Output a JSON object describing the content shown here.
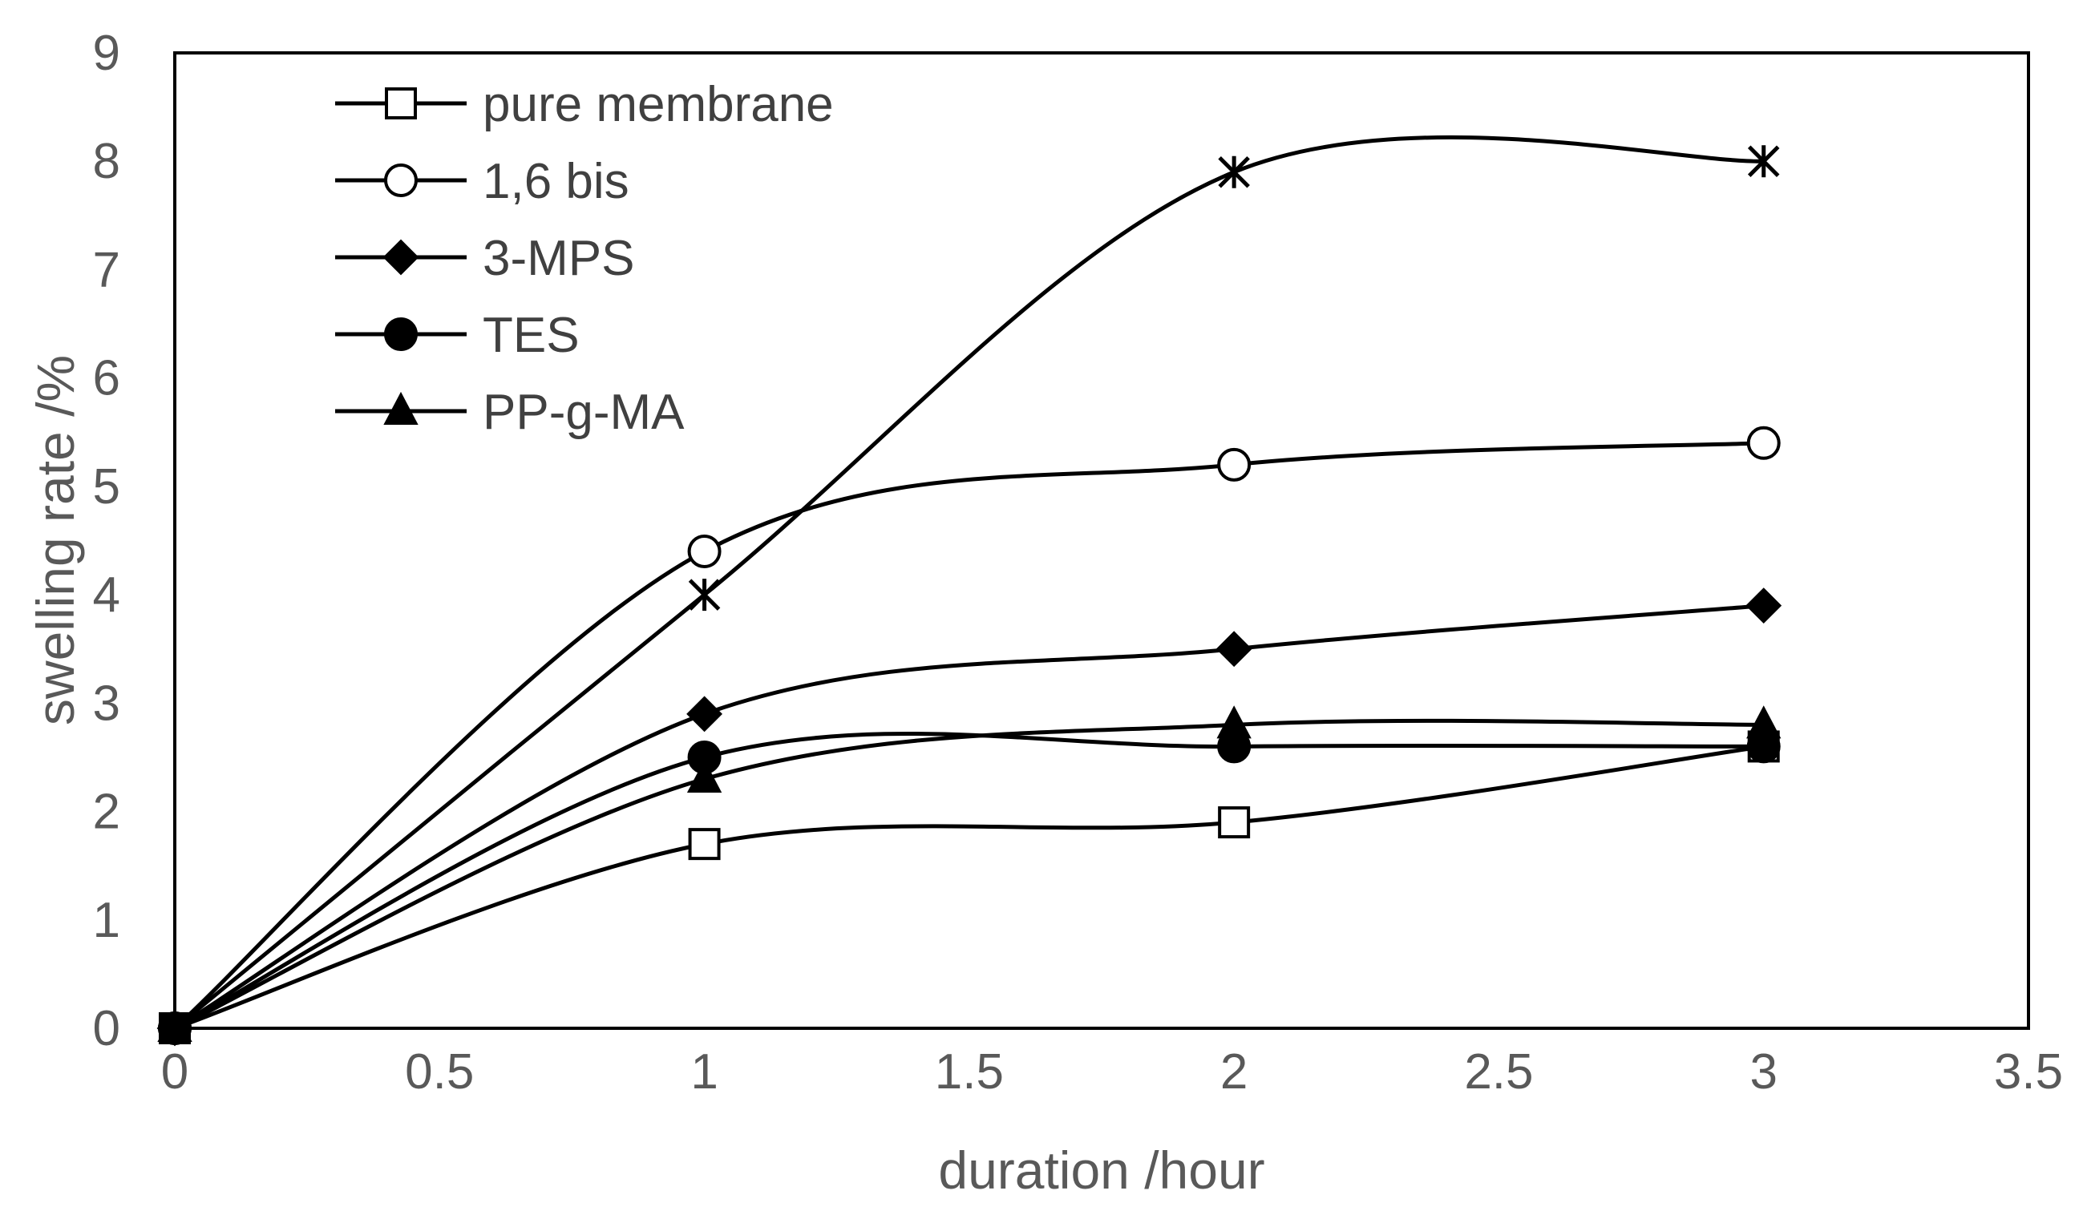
{
  "chart_data": {
    "type": "line",
    "title": "",
    "xlabel": "duration /hour",
    "ylabel": "swelling rate /%",
    "xlim": [
      0,
      3.5
    ],
    "ylim": [
      0,
      9
    ],
    "xticks": [
      0,
      0.5,
      1,
      1.5,
      2,
      2.5,
      3,
      3.5
    ],
    "yticks": [
      0,
      1,
      2,
      3,
      4,
      5,
      6,
      7,
      8,
      9
    ],
    "xtick_labels": [
      "0",
      "0.5",
      "1",
      "1.5",
      "2",
      "2.5",
      "3",
      "3.5"
    ],
    "ytick_labels": [
      "0",
      "1",
      "2",
      "3",
      "4",
      "5",
      "6",
      "7",
      "8",
      "9"
    ],
    "grid": false,
    "legend_position": "top-left",
    "smooth": true,
    "color": "#000000",
    "series": [
      {
        "name": "pure membrane",
        "marker": "square-open",
        "in_legend": true,
        "x": [
          0,
          1,
          2,
          3
        ],
        "y": [
          0,
          1.7,
          1.9,
          2.6
        ]
      },
      {
        "name": "1,6 bis",
        "marker": "circle-open",
        "in_legend": true,
        "x": [
          0,
          1,
          2,
          3
        ],
        "y": [
          0,
          4.4,
          5.2,
          5.4
        ]
      },
      {
        "name": "3-MPS",
        "marker": "diamond-filled",
        "in_legend": true,
        "x": [
          0,
          1,
          2,
          3
        ],
        "y": [
          0,
          2.9,
          3.5,
          3.9
        ]
      },
      {
        "name": "TES",
        "marker": "circle-filled",
        "in_legend": true,
        "x": [
          0,
          1,
          2,
          3
        ],
        "y": [
          0,
          2.5,
          2.6,
          2.6
        ]
      },
      {
        "name": "PP-g-MA",
        "marker": "triangle-filled",
        "in_legend": true,
        "x": [
          0,
          1,
          2,
          3
        ],
        "y": [
          0,
          2.3,
          2.8,
          2.8
        ]
      },
      {
        "name": "",
        "marker": "asterisk",
        "in_legend": false,
        "x": [
          0,
          1,
          2,
          3
        ],
        "y": [
          0,
          4.0,
          7.9,
          8.0
        ]
      }
    ]
  }
}
